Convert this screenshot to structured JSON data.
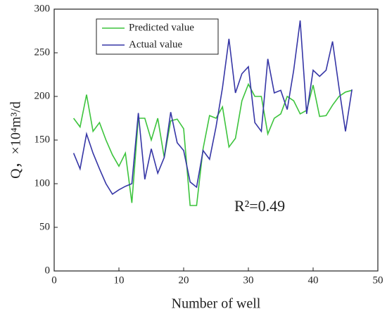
{
  "chart_data": {
    "type": "line",
    "x": [
      3,
      4,
      5,
      6,
      7,
      8,
      9,
      10,
      11,
      12,
      13,
      14,
      15,
      16,
      17,
      18,
      19,
      20,
      21,
      22,
      23,
      24,
      25,
      26,
      27,
      28,
      29,
      30,
      31,
      32,
      33,
      34,
      35,
      36,
      37,
      38,
      39,
      40,
      41,
      42,
      43,
      44,
      45,
      46
    ],
    "series": [
      {
        "name": "Predicted value",
        "color": "#3dc43d",
        "values": [
          175,
          165,
          202,
          160,
          170,
          150,
          133,
          120,
          135,
          78,
          175,
          175,
          150,
          175,
          130,
          172,
          174,
          163,
          75,
          75,
          140,
          178,
          175,
          188,
          142,
          152,
          195,
          214,
          200,
          200,
          157,
          175,
          180,
          200,
          195,
          180,
          184,
          213,
          177,
          178,
          190,
          200,
          205,
          207
        ]
      },
      {
        "name": "Actual value",
        "color": "#3636a6",
        "values": [
          135,
          117,
          157,
          135,
          117,
          100,
          88,
          93,
          97,
          100,
          181,
          105,
          140,
          112,
          130,
          182,
          147,
          138,
          102,
          96,
          138,
          128,
          165,
          210,
          266,
          204,
          226,
          234,
          170,
          160,
          243,
          204,
          207,
          185,
          230,
          287,
          180,
          230,
          223,
          230,
          263,
          210,
          160,
          208
        ]
      }
    ],
    "xlabel": "Number of well",
    "ylabel": "Q，×10⁴m³/d",
    "annotation": "R²=0.49",
    "xlim": [
      0,
      50
    ],
    "xticks": [
      0,
      10,
      20,
      30,
      40,
      50
    ],
    "ylim": [
      0,
      300
    ],
    "yticks": [
      0,
      50,
      100,
      150,
      200,
      250,
      300
    ],
    "legend": "upper left"
  }
}
